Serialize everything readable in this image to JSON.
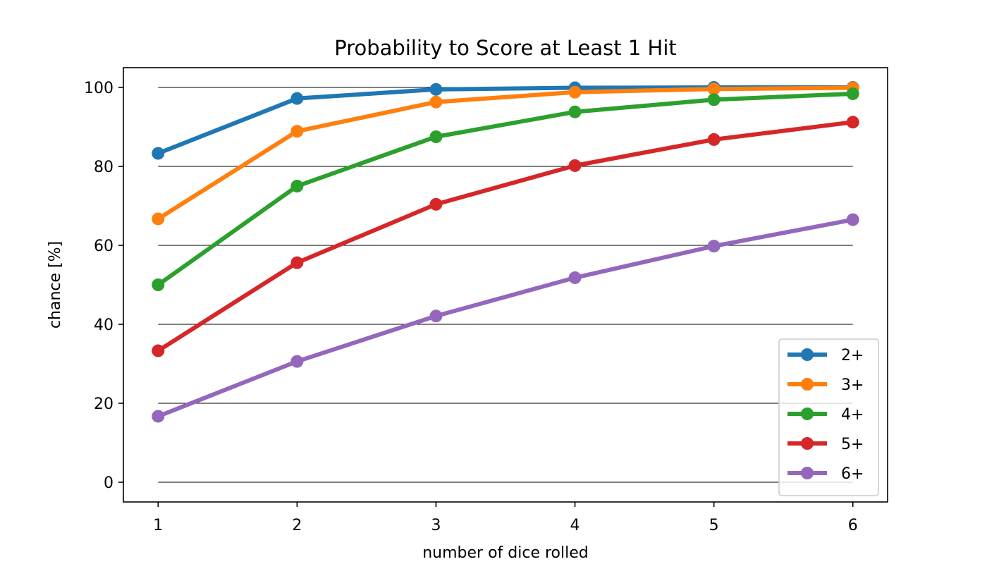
{
  "chart_data": {
    "type": "line",
    "title": "Probability to Score at Least 1 Hit",
    "xlabel": "number of dice rolled",
    "ylabel": "chance [%]",
    "x": [
      1,
      2,
      3,
      4,
      5,
      6
    ],
    "xlim": [
      0.75,
      6.25
    ],
    "ylim": [
      -5,
      105
    ],
    "xticks": [
      1,
      2,
      3,
      4,
      5,
      6
    ],
    "yticks": [
      0,
      20,
      40,
      60,
      80,
      100
    ],
    "grid": "horizontal",
    "legend_position": "lower-right",
    "series": [
      {
        "name": "2+",
        "color": "#1f77b4",
        "values": [
          83.3,
          97.2,
          99.5,
          99.9,
          100.0,
          100.0
        ]
      },
      {
        "name": "3+",
        "color": "#ff7f0e",
        "values": [
          66.7,
          88.9,
          96.3,
          98.8,
          99.6,
          99.9
        ]
      },
      {
        "name": "4+",
        "color": "#2ca02c",
        "values": [
          50.0,
          75.0,
          87.5,
          93.8,
          96.9,
          98.4
        ]
      },
      {
        "name": "5+",
        "color": "#d62728",
        "values": [
          33.3,
          55.6,
          70.4,
          80.2,
          86.8,
          91.2
        ]
      },
      {
        "name": "6+",
        "color": "#9467bd",
        "values": [
          16.7,
          30.6,
          42.1,
          51.8,
          59.8,
          66.5
        ]
      }
    ]
  }
}
